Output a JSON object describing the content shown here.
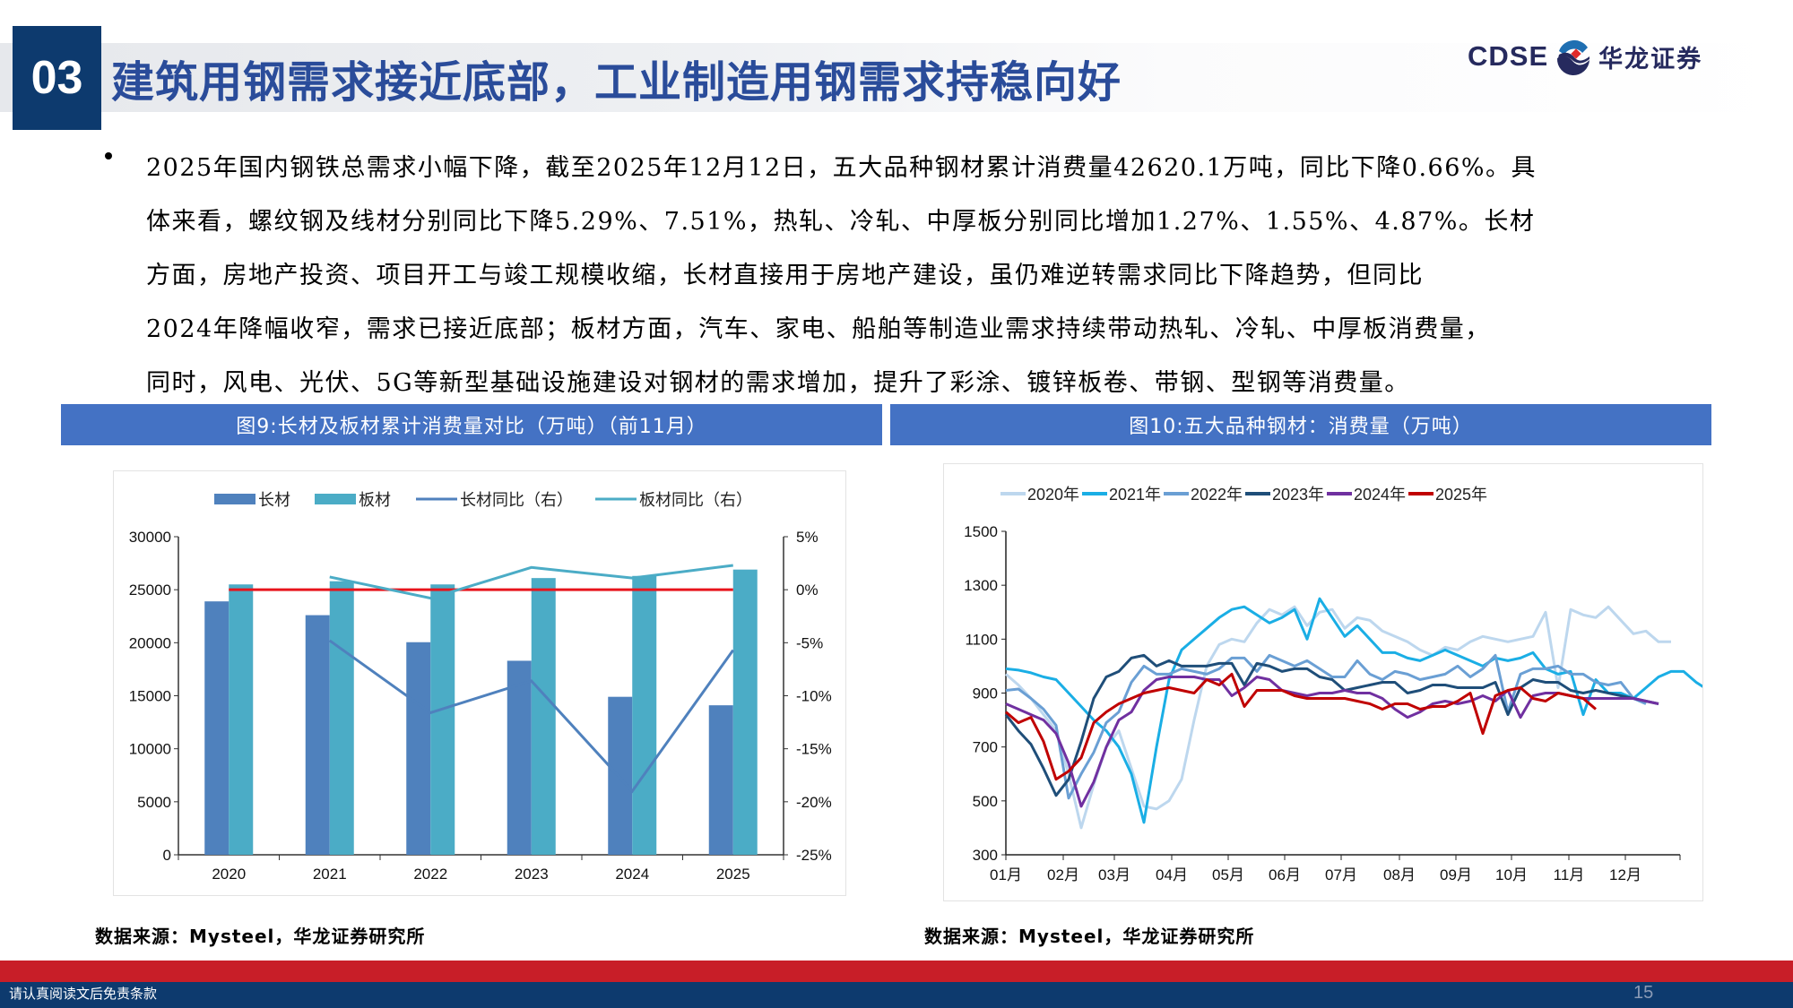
{
  "header": {
    "section_number": "03",
    "title": "建筑用钢需求接近底部，工业制造用钢需求持稳向好",
    "logo_en": "CDSE",
    "logo_cn": "华龙证券"
  },
  "body": {
    "bullet_lines": [
      "2025年国内钢铁总需求小幅下降，截至2025年12月12日，五大品种钢材累计消费量42620.1万吨，同比下降0.66%。具",
      "体来看，螺纹钢及线材分别同比下降5.29%、7.51%，热轧、冷轧、中厚板分别同比增加1.27%、1.55%、4.87%。长材",
      "方面，房地产投资、项目开工与竣工规模收缩，长材直接用于房地产建设，虽仍难逆转需求同比下降趋势，但同比",
      "2024年降幅收窄，需求已接近底部；板材方面，汽车、家电、船舶等制造业需求持续带动热轧、冷轧、中厚板消费量，",
      "同时，风电、光伏、5G等新型基础设施建设对钢材的需求增加，提升了彩涂、镀锌板卷、带钢、型钢等消费量。"
    ]
  },
  "figures": {
    "fig9": {
      "header": "图9:长材及板材累计消费量对比（万吨）（前11月）",
      "source": "数据来源：Mysteel，华龙证券研究所"
    },
    "fig10": {
      "header": "图10:五大品种钢材：消费量（万吨）",
      "source": "数据来源：Mysteel，华龙证券研究所"
    }
  },
  "footer": {
    "disclaimer": "请认真阅读文后免责条款",
    "page_number": "15"
  },
  "colors": {
    "navy": "#0d3a6e",
    "title_blue": "#2a4c9a",
    "fig_header": "#4472c4",
    "footer_red": "#c81e28",
    "long_bar": "#4f81bd",
    "flat_bar": "#4bacc6",
    "zero_line": "#e8141c"
  },
  "chart_data": [
    {
      "type": "bar",
      "title": "图9:长材及板材累计消费量对比（万吨）（前11月）",
      "categories": [
        "2020",
        "2021",
        "2022",
        "2023",
        "2024",
        "2025"
      ],
      "series": [
        {
          "name": "长材",
          "kind": "bar",
          "axis": "left",
          "color": "#4f81bd",
          "values": [
            23900,
            22600,
            20050,
            18300,
            14900,
            14100
          ]
        },
        {
          "name": "板材",
          "kind": "bar",
          "axis": "left",
          "color": "#4bacc6",
          "values": [
            25500,
            25800,
            25500,
            26100,
            26300,
            26900
          ]
        },
        {
          "name": "长材同比（右）",
          "kind": "line",
          "axis": "right",
          "color": "#4f81bd",
          "values": [
            null,
            -4.8,
            -11.6,
            -8.6,
            -19.0,
            -5.7
          ]
        },
        {
          "name": "板材同比（右）",
          "kind": "line",
          "axis": "right",
          "color": "#4bacc6",
          "values": [
            null,
            1.2,
            -0.8,
            2.1,
            1.1,
            2.3
          ]
        }
      ],
      "reference_line": {
        "axis": "right",
        "value": 0,
        "color": "#e8141c"
      },
      "ylim": [
        0,
        30000
      ],
      "yticks": [
        0,
        5000,
        10000,
        15000,
        20000,
        25000,
        30000
      ],
      "y2lim": [
        -25,
        5
      ],
      "y2ticks": [
        "5%",
        "0%",
        "-5%",
        "-10%",
        "-15%",
        "-20%",
        "-25%"
      ],
      "legend": [
        "长材",
        "板材",
        "长材同比（右）",
        "板材同比（右）"
      ],
      "legend_position": "top",
      "grid": false
    },
    {
      "type": "line",
      "title": "图10:五大品种钢材：消费量（万吨）",
      "x_ticks": [
        "01月",
        "02月",
        "03月",
        "04月",
        "05月",
        "06月",
        "07月",
        "08月",
        "09月",
        "10月",
        "11月",
        "12月"
      ],
      "ylim": [
        300,
        1500
      ],
      "yticks": [
        300,
        500,
        700,
        900,
        1100,
        1300,
        1500
      ],
      "legend": [
        "2020年",
        "2021年",
        "2022年",
        "2023年",
        "2024年",
        "2025年"
      ],
      "legend_position": "top",
      "grid": false,
      "note": "weekly data, approx. 50 points per year",
      "series": [
        {
          "name": "2020年",
          "color": "#bdd7ee",
          "values": [
            970,
            930,
            880,
            820,
            760,
            600,
            400,
            560,
            700,
            760,
            620,
            480,
            470,
            500,
            580,
            800,
            1000,
            1080,
            1100,
            1090,
            1160,
            1210,
            1190,
            1220,
            1150,
            1200,
            1210,
            1140,
            1180,
            1170,
            1130,
            1110,
            1090,
            1060,
            1040,
            1070,
            1060,
            1090,
            1110,
            1100,
            1090,
            1100,
            1110,
            1200,
            920,
            1210,
            1190,
            1180,
            1220,
            1170,
            1120,
            1130,
            1090,
            1090
          ]
        },
        {
          "name": "2021年",
          "color": "#1aaee5",
          "values": [
            990,
            985,
            975,
            960,
            950,
            900,
            850,
            800,
            760,
            700,
            600,
            420,
            700,
            950,
            1060,
            1100,
            1140,
            1180,
            1210,
            1220,
            1190,
            1160,
            1180,
            1210,
            1100,
            1250,
            1180,
            1110,
            1150,
            1100,
            1050,
            1050,
            1030,
            1020,
            1040,
            1060,
            1040,
            1020,
            1000,
            1030,
            1020,
            1030,
            1050,
            990,
            970,
            980,
            820,
            950,
            900,
            900,
            880,
            920,
            960,
            980,
            980,
            940,
            910
          ]
        },
        {
          "name": "2022年",
          "color": "#6a9fd4",
          "values": [
            910,
            915,
            880,
            840,
            780,
            510,
            600,
            680,
            790,
            830,
            940,
            1000,
            970,
            970,
            990,
            980,
            970,
            990,
            1030,
            1030,
            980,
            1040,
            1020,
            1000,
            1020,
            990,
            960,
            960,
            1020,
            970,
            950,
            980,
            970,
            950,
            960,
            970,
            1000,
            960,
            990,
            1040,
            830,
            970,
            990,
            990,
            1000,
            970,
            970,
            940,
            930,
            940,
            880,
            860
          ]
        },
        {
          "name": "2023年",
          "color": "#1f4e79",
          "values": [
            820,
            760,
            710,
            620,
            520,
            580,
            720,
            880,
            960,
            980,
            1030,
            1040,
            1000,
            1020,
            1000,
            1000,
            1000,
            1010,
            1010,
            930,
            1010,
            1000,
            980,
            990,
            990,
            960,
            950,
            910,
            920,
            930,
            940,
            940,
            900,
            910,
            930,
            930,
            920,
            920,
            920,
            940,
            820,
            920,
            950,
            940,
            940,
            910,
            900,
            910,
            900,
            890,
            880,
            870,
            860
          ]
        },
        {
          "name": "2024年",
          "color": "#7030a0",
          "values": [
            860,
            840,
            820,
            800,
            750,
            640,
            480,
            570,
            700,
            800,
            830,
            910,
            950,
            960,
            960,
            960,
            950,
            950,
            890,
            920,
            960,
            950,
            910,
            900,
            890,
            900,
            900,
            910,
            900,
            900,
            880,
            840,
            810,
            830,
            860,
            870,
            860,
            870,
            890,
            870,
            910,
            810,
            890,
            900,
            900,
            890,
            880,
            880,
            880,
            880,
            880,
            870,
            860
          ]
        },
        {
          "name": "2025年",
          "color": "#c00000",
          "values": [
            830,
            790,
            810,
            720,
            580,
            610,
            660,
            790,
            830,
            860,
            880,
            900,
            910,
            920,
            910,
            900,
            950,
            930,
            970,
            850,
            910,
            910,
            910,
            890,
            880,
            880,
            880,
            880,
            870,
            860,
            840,
            860,
            860,
            840,
            850,
            850,
            870,
            900,
            750,
            890,
            910,
            920,
            880,
            870,
            900,
            890,
            880,
            840
          ]
        }
      ]
    }
  ]
}
